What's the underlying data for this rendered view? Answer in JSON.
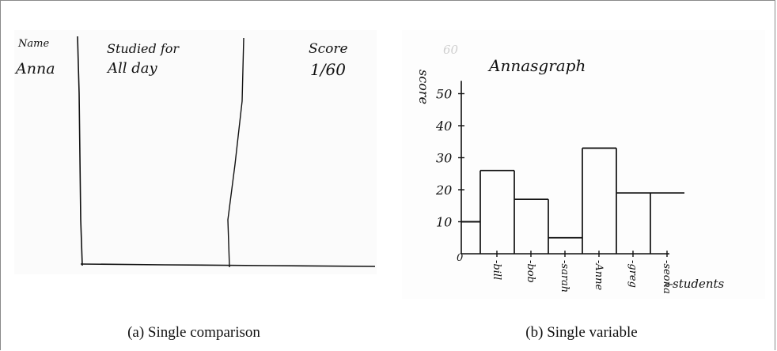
{
  "figure": {
    "captions": {
      "a": "(a) Single comparison",
      "b": "(b) Single variable"
    }
  },
  "panel_a": {
    "headers": [
      "Name",
      "Studied for",
      "Score"
    ],
    "row": [
      "Anna",
      "All day",
      "1/60"
    ]
  },
  "chart_data": {
    "type": "bar",
    "title": "Annasgraph",
    "xlabel": "students",
    "ylabel": "score",
    "categories": [
      "bill",
      "bob",
      "sarah",
      "Anne",
      "greg",
      "seona"
    ],
    "lead_in_value": 10,
    "values": [
      26,
      17,
      5,
      33,
      19,
      19
    ],
    "yticks": [
      10,
      20,
      30,
      40,
      50
    ],
    "ytick_labels": [
      "10",
      "20",
      "30",
      "40",
      "50"
    ],
    "ylim": [
      0,
      60
    ],
    "origin_label": "0",
    "faint_label": "60",
    "style": {
      "stroke": "#111111"
    }
  }
}
